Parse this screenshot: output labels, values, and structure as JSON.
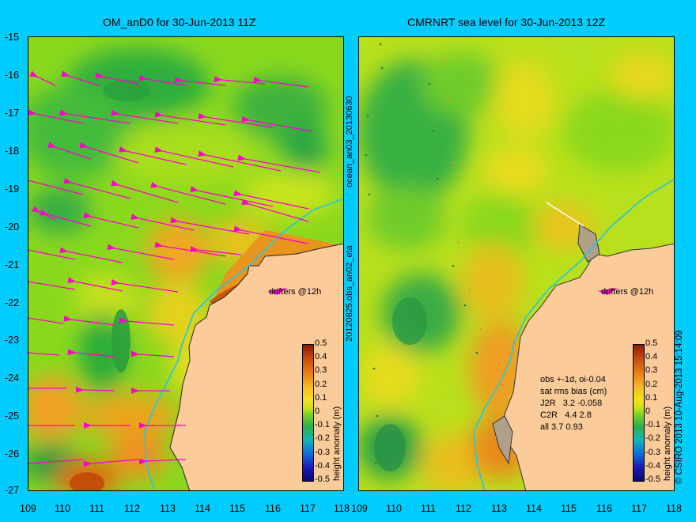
{
  "left_map": {
    "title": "OM_anD0 for 30-Jun-2013 11Z",
    "drifters_label": "drifters @12h",
    "colorbar_label": "height anomaly (m)"
  },
  "right_map": {
    "title": "CMRNRT sea level  for 30-Jun-2013 12Z",
    "drifters_label": "drifters @12h",
    "colorbar_label": "height anomaly (m)",
    "stats": [
      "obs +-1d, oi-0.04",
      "sat rms bias (cm)",
      "J2R   3.2 -0.058",
      "C2R   4.4 2.8",
      "all 3.7 0.93"
    ]
  },
  "side_labels": {
    "center_top": "ocean_an03_20130630",
    "center_bottom": "20120825.obs_an02_eta",
    "right_edge": "© CSIRO 2013   10-Aug-2013 15:14:09"
  },
  "y_ticks": [
    "-15",
    "-16",
    "-17",
    "-18",
    "-19",
    "-20",
    "-21",
    "-22",
    "-23",
    "-24",
    "-25",
    "-26",
    "-27"
  ],
  "x_ticks": [
    "109",
    "110",
    "111",
    "112",
    "113",
    "114",
    "115",
    "116",
    "117",
    "118"
  ],
  "colorbar_ticks": [
    "0.5",
    "0.4",
    "0.3",
    "0.2",
    "0.1",
    "0",
    "-0.1",
    "-0.2",
    "-0.3",
    "-0.4",
    "-0.5"
  ],
  "colors": {
    "background": "#00ccff",
    "land": "#fccb9a",
    "arrows": "#ff00cc",
    "coast_line": "#22c8e0"
  }
}
